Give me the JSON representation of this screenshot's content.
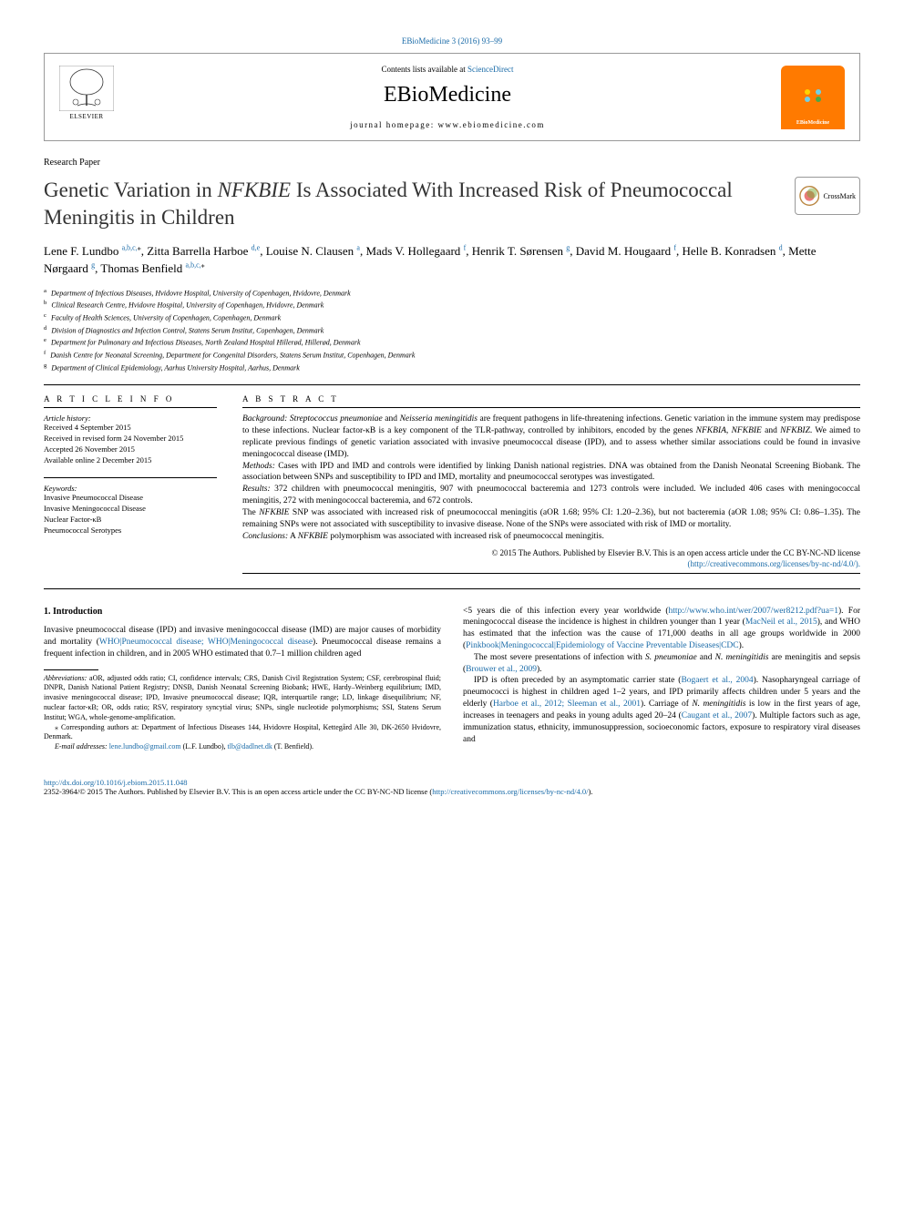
{
  "top_link": {
    "text": "EBioMedicine 3 (2016) 93–99",
    "href_color": "#1a6ba8"
  },
  "header": {
    "contents_prefix": "Contents lists available at ",
    "contents_link": "ScienceDirect",
    "journal": "EBioMedicine",
    "homepage_label": "journal homepage: ",
    "homepage_url": "www.ebiomedicine.com",
    "elsevier_label": "ELSEVIER",
    "cover_label": "EBioMedicine",
    "cover_bg": "#ff7a00"
  },
  "article_type": "Research Paper",
  "title_pre": "Genetic Variation in ",
  "title_italic": "NFKBIE",
  "title_post": " Is Associated With Increased Risk of Pneumococcal Meningitis in Children",
  "crossmark_label": "CrossMark",
  "authors_html": "Lene F. Lundbo <a><sup>a,b,c,</sup></a><sup>⁎</sup>, Zitta Barrella Harboe <a><sup>d,e</sup></a>, Louise N. Clausen <a><sup>a</sup></a>, Mads V. Hollegaard <a><sup>f</sup></a>, Henrik T. Sørensen <a><sup>g</sup></a>, David M. Hougaard <a><sup>f</sup></a>, Helle B. Konradsen <a><sup>d</sup></a>, Mette Nørgaard <a><sup>g</sup></a>, Thomas Benfield <a><sup>a,b,c,</sup></a><sup>⁎</sup>",
  "affiliations": [
    {
      "sup": "a",
      "text": "Department of Infectious Diseases, Hvidovre Hospital, University of Copenhagen, Hvidovre, Denmark"
    },
    {
      "sup": "b",
      "text": "Clinical Research Centre, Hvidovre Hospital, University of Copenhagen, Hvidovre, Denmark"
    },
    {
      "sup": "c",
      "text": "Faculty of Health Sciences, University of Copenhagen, Copenhagen, Denmark"
    },
    {
      "sup": "d",
      "text": "Division of Diagnostics and Infection Control, Statens Serum Institut, Copenhagen, Denmark"
    },
    {
      "sup": "e",
      "text": "Department for Pulmonary and Infectious Diseases, North Zealand Hospital Hillerød, Hillerød, Denmark"
    },
    {
      "sup": "f",
      "text": "Danish Centre for Neonatal Screening, Department for Congenital Disorders, Statens Serum Institut, Copenhagen, Denmark"
    },
    {
      "sup": "g",
      "text": "Department of Clinical Epidemiology, Aarhus University Hospital, Aarhus, Denmark"
    }
  ],
  "article_info": {
    "heading": "A R T I C L E   I N F O",
    "history_label": "Article history:",
    "history": [
      "Received 4 September 2015",
      "Received in revised form 24 November 2015",
      "Accepted 26 November 2015",
      "Available online 2 December 2015"
    ],
    "keywords_label": "Keywords:",
    "keywords": [
      "Invasive Pneumococcal Disease",
      "Invasive Meningococcal Disease",
      "Nuclear Factor-κB",
      "Pneumococcal Serotypes"
    ]
  },
  "abstract": {
    "heading": "A B S T R A C T",
    "background_label": "Background:",
    "background": " <em>Streptococcus pneumoniae</em> and <em>Neisseria meningitidis</em> are frequent pathogens in life-threatening infections. Genetic variation in the immune system may predispose to these infections. Nuclear factor-κB is a key component of the TLR-pathway, controlled by inhibitors, encoded by the genes <em>NFKBIA</em>, <em>NFKBIE</em> and <em>NFKBIZ</em>. We aimed to replicate previous findings of genetic variation associated with invasive pneumococcal disease (IPD), and to assess whether similar associations could be found in invasive meningococcal disease (IMD).",
    "methods_label": "Methods:",
    "methods": " Cases with IPD and IMD and controls were identified by linking Danish national registries. DNA was obtained from the Danish Neonatal Screening Biobank. The association between SNPs and susceptibility to IPD and IMD, mortality and pneumococcal serotypes was investigated.",
    "results_label": "Results:",
    "results": " 372 children with pneumococcal meningitis, 907 with pneumococcal bacteremia and 1273 controls were included. We included 406 cases with meningococcal meningitis, 272 with meningococcal bacteremia, and 672 controls.",
    "results2": "The <em>NFKBIE</em> SNP was associated with increased risk of pneumococcal meningitis (aOR 1.68; 95% CI: 1.20–2.36), but not bacteremia (aOR 1.08; 95% CI: 0.86–1.35). The remaining SNPs were not associated with susceptibility to invasive disease. None of the SNPs were associated with risk of IMD or mortality.",
    "conclusions_label": "Conclusions:",
    "conclusions": " A <em>NFKBIE</em> polymorphism was associated with increased risk of pneumococcal meningitis.",
    "copyright_line": "© 2015 The Authors. Published by Elsevier B.V. This is an open access article under the CC BY-NC-ND license",
    "copyright_link": "(http://creativecommons.org/licenses/by-nc-nd/4.0/)."
  },
  "body": {
    "intro_heading": "1. Introduction",
    "left_p1": "Invasive pneumococcal disease (IPD) and invasive meningococcal disease (IMD) are major causes of morbidity and mortality (<a>WHO|Pneumococcal disease; WHO|Meningococcal disease</a>). Pneumococcal disease remains a frequent infection in children, and in 2005 WHO estimated that 0.7–1 million children aged",
    "right_p1": "<5 years die of this infection every year worldwide (<a>http://www.who.int/wer/2007/wer8212.pdf?ua=1</a>). For meningococcal disease the incidence is highest in children younger than 1 year (<a>MacNeil et al., 2015</a>), and WHO has estimated that the infection was the cause of 171,000 deaths in all age groups worldwide in 2000 (<a>Pinkbook|Meningococcal|Epidemiology of Vaccine Preventable Diseases|CDC</a>).",
    "right_p2": "The most severe presentations of infection with <em>S. pneumoniae</em> and <em>N. meningitidis</em> are meningitis and sepsis (<a>Brouwer et al., 2009</a>).",
    "right_p3": "IPD is often preceded by an asymptomatic carrier state (<a>Bogaert et al., 2004</a>). Nasopharyngeal carriage of pneumococci is highest in children aged 1–2 years, and IPD primarily affects children under 5 years and the elderly (<a>Harboe et al., 2012; Sleeman et al., 2001</a>). Carriage of <em>N. meningitidis</em> is low in the first years of age, increases in teenagers and peaks in young adults aged 20–24 (<a>Caugant et al., 2007</a>). Multiple factors such as age, immunization status, ethnicity, immunosuppression, socioeconomic factors, exposure to respiratory viral diseases and"
  },
  "footnotes": {
    "abbrev_label": "Abbreviations:",
    "abbrev": " aOR, adjusted odds ratio; CI, confidence intervals; CRS, Danish Civil Registration System; CSF, cerebrospinal fluid; DNPR, Danish National Patient Registry; DNSB, Danish Neonatal Screening Biobank; HWE, Hardy–Weinberg equilibrium; IMD, invasive meningococcal disease; IPD, Invasive pneumococcal disease; IQR, interquartile range; LD, linkage disequilibrium; NF, nuclear factor-κB; OR, odds ratio; RSV, respiratory syncytial virus; SNPs, single nucleotide polymorphisms; SSI, Statens Serum Institut; WGA, whole-genome-amplification.",
    "corr_star": "⁎",
    "corr": " Corresponding authors at: Department of Infectious Diseases 144, Hvidovre Hospital, Kettegård Alle 30, DK-2650 Hvidovre, Denmark.",
    "email_label": "E-mail addresses:",
    "email1": "lene.lundbo@gmail.com",
    "email1_who": " (L.F. Lundbo), ",
    "email2": "tlb@dadlnet.dk",
    "email2_who": " (T. Benfield)."
  },
  "doi": {
    "link": "http://dx.doi.org/10.1016/j.ebiom.2015.11.048",
    "license": "2352-3964/© 2015 The Authors. Published by Elsevier B.V. This is an open access article under the CC BY-NC-ND license (",
    "license_link": "http://creativecommons.org/licenses/by-nc-nd/4.0/",
    "license_suffix": ")."
  },
  "colors": {
    "link": "#1a6ba8",
    "text": "#000000",
    "border": "#999999"
  }
}
